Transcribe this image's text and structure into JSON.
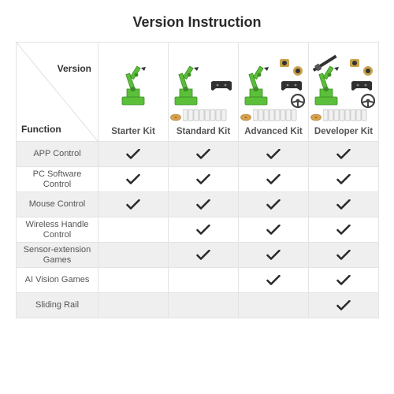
{
  "title": "Version Instruction",
  "axis": {
    "versionLabel": "Version",
    "functionLabel": "Function"
  },
  "colors": {
    "border": "#e3e3e3",
    "rowAlt": "#efefef",
    "rowBase": "#ffffff",
    "text": "#555555",
    "titleText": "#2a2a2a",
    "check": "#2a2a2a",
    "armGreen": "#5bbf3a",
    "armDark": "#3e8c26",
    "controllerFill": "#2f2f2f",
    "steeringFill": "#444444",
    "cardFill": "#f2f2f2",
    "cardStroke": "#bdbdbd",
    "railFill": "#333333"
  },
  "table": {
    "type": "comparison-table",
    "columns": [
      {
        "id": "starter",
        "name": "Starter Kit",
        "hasController": false,
        "hasCards": false,
        "hasSteering": false,
        "hasCamera": false,
        "hasRail": false
      },
      {
        "id": "standard",
        "name": "Standard Kit",
        "hasController": true,
        "hasCards": true,
        "hasSteering": false,
        "hasCamera": false,
        "hasRail": false
      },
      {
        "id": "advanced",
        "name": "Advanced Kit",
        "hasController": true,
        "hasCards": true,
        "hasSteering": true,
        "hasCamera": true,
        "hasRail": false
      },
      {
        "id": "developer",
        "name": "Developer Kit",
        "hasController": true,
        "hasCards": true,
        "hasSteering": true,
        "hasCamera": true,
        "hasRail": true
      }
    ],
    "features": [
      {
        "label": "APP Control",
        "values": [
          true,
          true,
          true,
          true
        ]
      },
      {
        "label": "PC Software Control",
        "values": [
          true,
          true,
          true,
          true
        ]
      },
      {
        "label": "Mouse Control",
        "values": [
          true,
          true,
          true,
          true
        ]
      },
      {
        "label": "Wireless Handle Control",
        "values": [
          false,
          true,
          true,
          true
        ]
      },
      {
        "label": "Sensor-extension Games",
        "values": [
          false,
          true,
          true,
          true
        ]
      },
      {
        "label": "AI Vision Games",
        "values": [
          false,
          false,
          true,
          true
        ]
      },
      {
        "label": "Sliding Rail",
        "values": [
          false,
          false,
          false,
          true
        ]
      }
    ]
  }
}
